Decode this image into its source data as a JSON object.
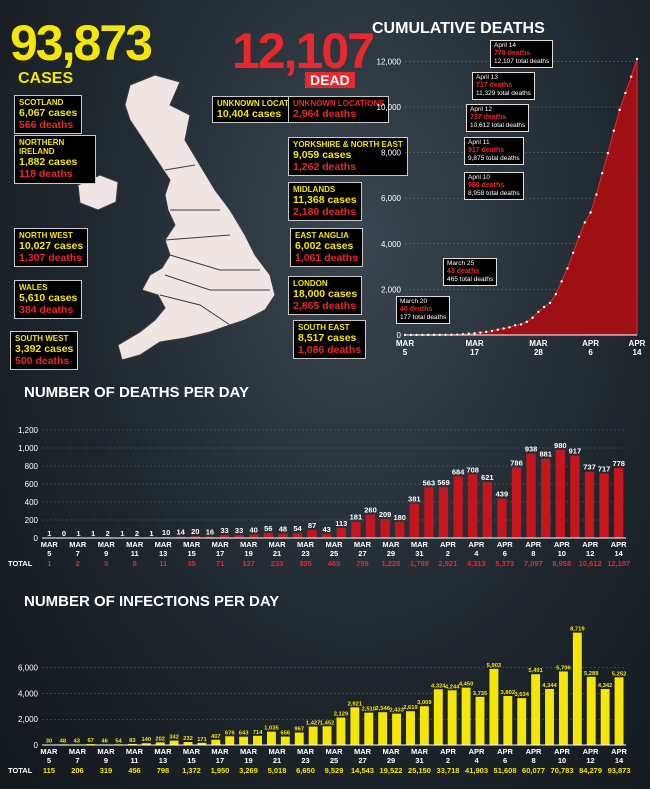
{
  "header": {
    "cases_number": "93,873",
    "cases_label": "CASES",
    "dead_number": "12,107",
    "dead_label": "DEAD",
    "cumulative_title": "CUMULATIVE DEATHS"
  },
  "regions": [
    {
      "name": "SCOTLAND",
      "cases": "6,067 cases",
      "deaths": "566 deaths"
    },
    {
      "name": "NORTHERN IRELAND",
      "cases": "1,882 cases",
      "deaths": "118 deaths"
    },
    {
      "name": "NORTH WEST",
      "cases": "10,027 cases",
      "deaths": "1,307 deaths"
    },
    {
      "name": "WALES",
      "cases": "5,610 cases",
      "deaths": "384 deaths"
    },
    {
      "name": "SOUTH WEST",
      "cases": "3,392 cases",
      "deaths": "500 deaths"
    },
    {
      "name": "UNKNOWN LOCATIONS",
      "cases": "10,404 cases",
      "deaths": ""
    },
    {
      "name": "UNKNOWN LOCATIONS",
      "cases": "",
      "deaths": "2,964 deaths"
    },
    {
      "name": "YORKSHIRE & NORTH EAST",
      "cases": "9,059 cases",
      "deaths": "1,262 deaths"
    },
    {
      "name": "MIDLANDS",
      "cases": "11,368 cases",
      "deaths": "2,180 deaths"
    },
    {
      "name": "EAST ANGLIA",
      "cases": "6,002 cases",
      "deaths": "1,061 deaths"
    },
    {
      "name": "LONDON",
      "cases": "18,000 cases",
      "deaths": "2,865 deaths"
    },
    {
      "name": "SOUTH EAST",
      "cases": "8,517 cases",
      "deaths": "1,086 deaths"
    }
  ],
  "cumulative_annotations": [
    {
      "date": "April 14",
      "deaths": "778 deaths",
      "total": "12,107 total deaths"
    },
    {
      "date": "April 13",
      "deaths": "717 deaths",
      "total": "11,329 total deaths"
    },
    {
      "date": "April 12",
      "deaths": "737 deaths",
      "total": "10,612 total deaths"
    },
    {
      "date": "April 11",
      "deaths": "917 deaths",
      "total": "9,875 total deaths"
    },
    {
      "date": "April 10",
      "deaths": "980 deaths",
      "total": "8,958 total deaths"
    },
    {
      "date": "March 25",
      "deaths": "43 deaths",
      "total": "465 total deaths"
    },
    {
      "date": "March 20",
      "deaths": "40 deaths",
      "total": "177 total deaths"
    }
  ],
  "total_label": "TOTAL",
  "colors": {
    "red": "#c4161c",
    "yellow": "#f5e60a",
    "bg": "#1f272e"
  },
  "chart_data": [
    {
      "type": "area",
      "title": "CUMULATIVE DEATHS",
      "ylim": [
        0,
        12500
      ],
      "yticks": [
        0,
        2000,
        4000,
        6000,
        8000,
        10000,
        12000
      ],
      "ytick_labels": [
        "0",
        "2,000",
        "4,000",
        "6,000",
        "8,000",
        "10,000",
        "12,000"
      ],
      "xtick_labels": [
        [
          "MAR",
          "5"
        ],
        [
          "MAR",
          "17"
        ],
        [
          "MAR",
          "28"
        ],
        [
          "APR",
          "6"
        ],
        [
          "APR",
          "14"
        ]
      ],
      "x": [
        "Mar 5",
        "Mar 6",
        "Mar 7",
        "Mar 8",
        "Mar 9",
        "Mar 10",
        "Mar 11",
        "Mar 12",
        "Mar 13",
        "Mar 14",
        "Mar 15",
        "Mar 16",
        "Mar 17",
        "Mar 18",
        "Mar 19",
        "Mar 20",
        "Mar 21",
        "Mar 22",
        "Mar 23",
        "Mar 24",
        "Mar 25",
        "Mar 26",
        "Mar 27",
        "Mar 28",
        "Mar 29",
        "Mar 30",
        "Mar 31",
        "Apr 1",
        "Apr 2",
        "Apr 3",
        "Apr 4",
        "Apr 5",
        "Apr 6",
        "Apr 7",
        "Apr 8",
        "Apr 9",
        "Apr 10",
        "Apr 11",
        "Apr 12",
        "Apr 13",
        "Apr 14"
      ],
      "values": [
        1,
        2,
        2,
        3,
        5,
        6,
        8,
        10,
        11,
        21,
        35,
        55,
        71,
        104,
        137,
        177,
        233,
        281,
        335,
        422,
        465,
        578,
        759,
        1019,
        1228,
        1408,
        1789,
        2352,
        2921,
        3605,
        4313,
        4934,
        5373,
        6159,
        7097,
        7978,
        8958,
        9875,
        10612,
        11329,
        12107
      ]
    },
    {
      "type": "bar",
      "title": "NUMBER OF DEATHS PER DAY",
      "ylim": [
        0,
        1200
      ],
      "yticks": [
        0,
        200,
        400,
        600,
        800,
        1000,
        1200
      ],
      "ytick_labels": [
        "0",
        "200",
        "400",
        "600",
        "800",
        "1,000",
        "1,200"
      ],
      "values": [
        1,
        0,
        1,
        1,
        2,
        1,
        2,
        1,
        10,
        14,
        20,
        16,
        33,
        33,
        40,
        56,
        48,
        54,
        87,
        43,
        113,
        181,
        260,
        209,
        180,
        381,
        563,
        569,
        684,
        708,
        621,
        439,
        786,
        938,
        881,
        980,
        917,
        737,
        717,
        778
      ],
      "value_labels": [
        "1",
        "0",
        "1",
        "1",
        "2",
        "1",
        "2",
        "1",
        "10",
        "14",
        "20",
        "16",
        "33",
        "33",
        "40",
        "56",
        "48",
        "54",
        "87",
        "43",
        "113",
        "181",
        "260",
        "209",
        "180",
        "381",
        "563",
        "569",
        "684",
        "708",
        "621",
        "439",
        "786",
        "938",
        "881",
        "980",
        "917",
        "737",
        "717",
        "778"
      ],
      "xtick_labels": [
        [
          "MAR",
          "5"
        ],
        [
          "MAR",
          "7"
        ],
        [
          "MAR",
          "9"
        ],
        [
          "MAR",
          "11"
        ],
        [
          "MAR",
          "13"
        ],
        [
          "MAR",
          "15"
        ],
        [
          "MAR",
          "17"
        ],
        [
          "MAR",
          "19"
        ],
        [
          "MAR",
          "21"
        ],
        [
          "MAR",
          "23"
        ],
        [
          "MAR",
          "25"
        ],
        [
          "MAR",
          "27"
        ],
        [
          "MAR",
          "29"
        ],
        [
          "MAR",
          "31"
        ],
        [
          "APR",
          "2"
        ],
        [
          "APR",
          "4"
        ],
        [
          "APR",
          "6"
        ],
        [
          "APR",
          "8"
        ],
        [
          "APR",
          "10"
        ],
        [
          "APR",
          "12"
        ],
        [
          "APR",
          "14"
        ]
      ],
      "totals": [
        "1",
        "2",
        "5",
        "8",
        "11",
        "35",
        "71",
        "137",
        "233",
        "335",
        "465",
        "759",
        "1,228",
        "1,789",
        "2,921",
        "4,313",
        "5,373",
        "7,097",
        "8,958",
        "10,612",
        "12,107"
      ]
    },
    {
      "type": "bar",
      "title": "NUMBER OF INFECTIONS PER DAY",
      "ylim": [
        0,
        9000
      ],
      "yticks": [
        0,
        2000,
        4000,
        6000
      ],
      "ytick_labels": [
        "0",
        "2,000",
        "4,000",
        "6,000"
      ],
      "values": [
        30,
        48,
        43,
        67,
        46,
        54,
        83,
        140,
        202,
        342,
        232,
        171,
        407,
        676,
        643,
        714,
        1035,
        656,
        967,
        1427,
        1452,
        2129,
        2921,
        2510,
        2546,
        2433,
        2619,
        3009,
        4324,
        4244,
        4450,
        3735,
        5903,
        3802,
        3634,
        5491,
        4344,
        5706,
        8719,
        5288,
        4342,
        5252
      ],
      "value_labels": [
        "30",
        "48",
        "43",
        "67",
        "46",
        "54",
        "83",
        "140",
        "202",
        "342",
        "232",
        "171",
        "407",
        "676",
        "643",
        "714",
        "1,035",
        "656",
        "967",
        "1,427",
        "1,452",
        "2,129",
        "2,921",
        "2,510",
        "2,546",
        "2,433",
        "2,619",
        "3,009",
        "4,324",
        "4,244",
        "4,450",
        "3,735",
        "5,903",
        "3,802",
        "3,634",
        "5,491",
        "4,344",
        "5,706",
        "8,719",
        "5,288",
        "4,342",
        "5,252"
      ],
      "xtick_labels": [
        [
          "MAR",
          "5"
        ],
        [
          "MAR",
          "7"
        ],
        [
          "MAR",
          "9"
        ],
        [
          "MAR",
          "11"
        ],
        [
          "MAR",
          "13"
        ],
        [
          "MAR",
          "15"
        ],
        [
          "MAR",
          "17"
        ],
        [
          "MAR",
          "19"
        ],
        [
          "MAR",
          "21"
        ],
        [
          "MAR",
          "23"
        ],
        [
          "MAR",
          "25"
        ],
        [
          "MAR",
          "27"
        ],
        [
          "MAR",
          "29"
        ],
        [
          "MAR",
          "31"
        ],
        [
          "APR",
          "2"
        ],
        [
          "APR",
          "4"
        ],
        [
          "APR",
          "6"
        ],
        [
          "APR",
          "8"
        ],
        [
          "APR",
          "10"
        ],
        [
          "APR",
          "12"
        ],
        [
          "APR",
          "14"
        ]
      ],
      "totals": [
        "115",
        "206",
        "319",
        "456",
        "798",
        "1,372",
        "1,950",
        "3,269",
        "5,018",
        "6,650",
        "9,529",
        "14,543",
        "19,522",
        "25,150",
        "33,718",
        "41,903",
        "51,608",
        "60,077",
        "70,783",
        "84,279",
        "93,873"
      ]
    }
  ]
}
